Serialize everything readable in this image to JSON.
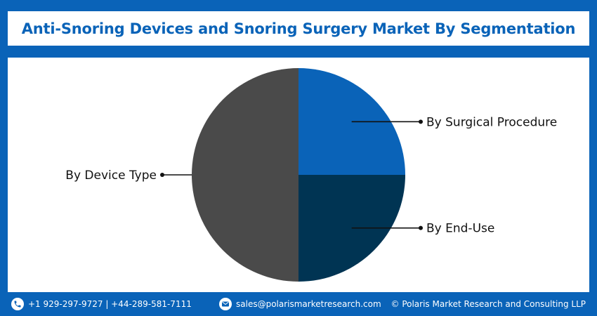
{
  "header": {
    "title": "Anti-Snoring Devices and Snoring Surgery Market By Segmentation"
  },
  "chart_data": {
    "type": "pie",
    "categories": [
      "By Surgical Procedure",
      "By End-Use",
      "By Device Type"
    ],
    "values": [
      25,
      25,
      50
    ],
    "colors": [
      "#0a63b8",
      "#003453",
      "#4a4a4a"
    ],
    "title": "Anti-Snoring Devices and Snoring Surgery Market By Segmentation"
  },
  "footer": {
    "phone": "+1 929-297-9727 | +44-289-581-7111",
    "email": "sales@polarismarketresearch.com",
    "copyright": "© Polaris Market Research and Consulting LLP",
    "phone_icon": "phone-icon",
    "email_icon": "mail-icon"
  },
  "colors": {
    "brand": "#0a63b8",
    "label_text": "#111111"
  }
}
